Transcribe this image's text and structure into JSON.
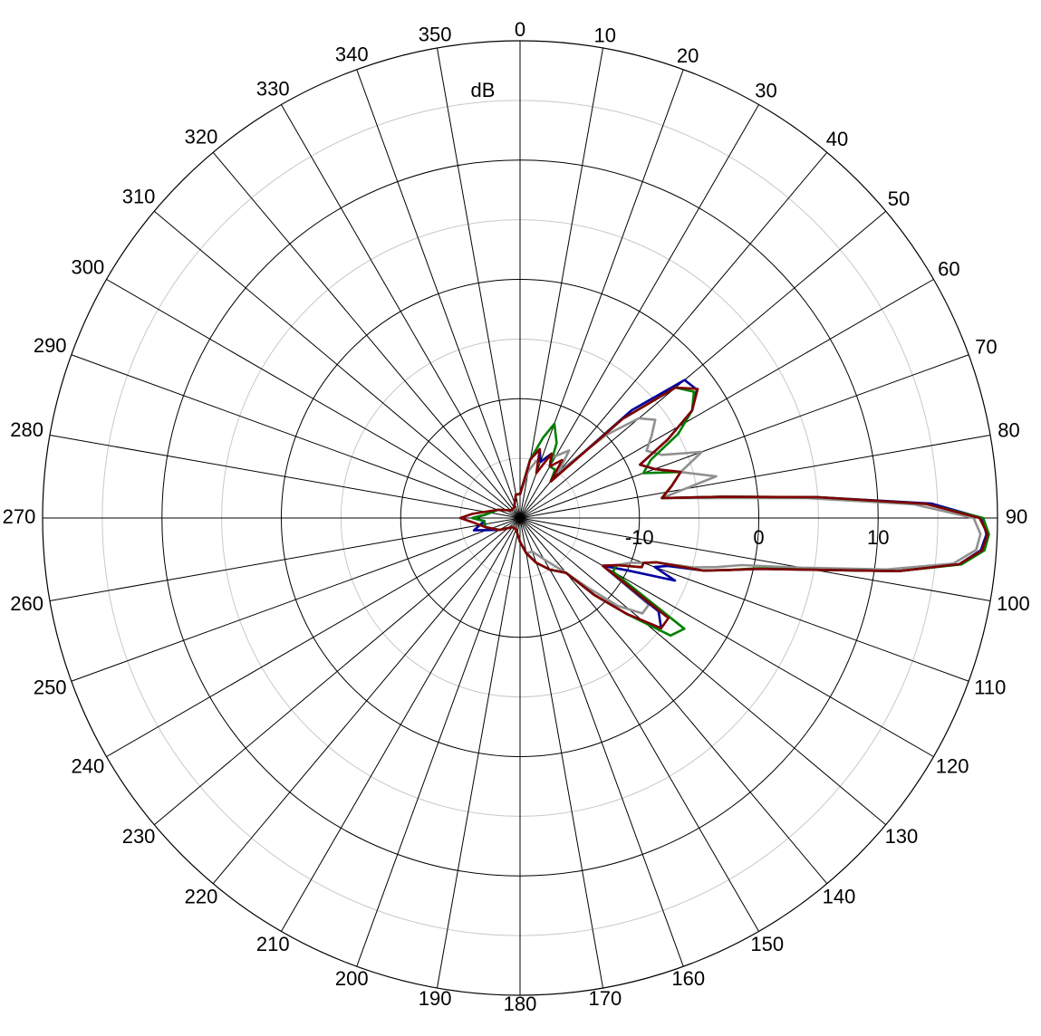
{
  "chart_data": {
    "type": "polar",
    "unit_label": "dB",
    "rlim": [
      -20,
      20
    ],
    "rticks": [
      -10,
      0,
      10
    ],
    "minor_rgrid": [
      -15,
      -5,
      5,
      15
    ],
    "thetaticks": [
      0,
      10,
      20,
      30,
      40,
      50,
      60,
      70,
      80,
      90,
      100,
      110,
      120,
      130,
      140,
      150,
      160,
      170,
      180,
      190,
      200,
      210,
      220,
      230,
      240,
      250,
      260,
      270,
      280,
      290,
      300,
      310,
      320,
      330,
      340,
      350
    ],
    "theta": [
      0,
      10,
      16,
      20,
      26,
      30,
      36,
      40,
      46,
      50,
      54,
      58,
      62,
      66,
      70,
      74,
      78,
      82,
      84,
      86,
      88,
      90,
      92,
      94,
      96,
      98,
      100,
      102,
      104,
      106,
      108,
      110,
      112,
      116,
      120,
      124,
      128,
      132,
      136,
      140,
      150,
      160,
      170,
      180,
      200,
      220,
      240,
      255,
      265,
      270,
      275,
      290,
      310,
      330,
      350
    ],
    "series": [
      {
        "color": "#909090",
        "values": [
          -18,
          -16,
          -15,
          -15,
          -14,
          -14,
          -13,
          -15,
          -10,
          -7,
          -6,
          -7,
          -8,
          -7,
          -3.8,
          -6,
          -3.2,
          -8,
          -4,
          4,
          13,
          18,
          18.6,
          18.3,
          16.5,
          11,
          4,
          -1,
          -3,
          -5,
          -8,
          -9,
          -10,
          -11,
          -12,
          -7,
          -7,
          -9,
          -12,
          -14,
          -16,
          -17,
          -17,
          -18,
          -19,
          -19,
          -18,
          -17,
          -17,
          -16,
          -17,
          -18,
          -19,
          -19,
          -18
        ]
      },
      {
        "color": "#0000a0",
        "values": [
          -18,
          -15,
          -14,
          -15,
          -14,
          -15,
          -15,
          -16,
          -7,
          -2,
          -1.7,
          -3,
          -6,
          -9,
          -8,
          -6,
          -7,
          -8,
          -3,
          5,
          14.5,
          18.7,
          19.1,
          18.7,
          17,
          12,
          5,
          0.5,
          -2,
          -4,
          -7,
          -8,
          -6,
          -10,
          -12,
          -6,
          -5,
          -8,
          -11,
          -14,
          -15,
          -16,
          -17,
          -18,
          -19,
          -19,
          -18,
          -16,
          -17,
          -16,
          -17,
          -18,
          -19,
          -19,
          -18
        ]
      },
      {
        "color": "#008000",
        "values": [
          -18,
          -15,
          -13,
          -11.6,
          -13,
          -15,
          -15,
          -16,
          -8,
          -3,
          -2,
          -3,
          -5,
          -8,
          -9,
          -6,
          -7,
          -8,
          -3,
          5,
          14,
          18.8,
          19.3,
          19,
          17.2,
          12,
          5,
          0.3,
          -2,
          -4,
          -8,
          -9,
          -9,
          -11,
          -11,
          -3.4,
          -4,
          -8,
          -11,
          -14,
          -15,
          -16,
          -17,
          -18,
          -19,
          -19,
          -18,
          -17,
          -17,
          -16,
          -17,
          -18,
          -19,
          -19,
          -18
        ]
      },
      {
        "color": "#800000",
        "values": [
          -18,
          -15,
          -14,
          -16,
          -14,
          -15,
          -14,
          -16,
          -8,
          -3,
          -1.6,
          -3,
          -6,
          -9,
          -8,
          -6,
          -7,
          -8,
          -3,
          5,
          14,
          18.5,
          19.2,
          18.8,
          17,
          12,
          5,
          0.5,
          -2,
          -4,
          -8,
          -9,
          -9,
          -11,
          -12,
          -5,
          -5,
          -8,
          -11,
          -14,
          -15,
          -16,
          -17,
          -18,
          -19,
          -19,
          -18,
          -17,
          -16,
          -15,
          -16,
          -18,
          -19,
          -19,
          -18
        ]
      }
    ]
  }
}
